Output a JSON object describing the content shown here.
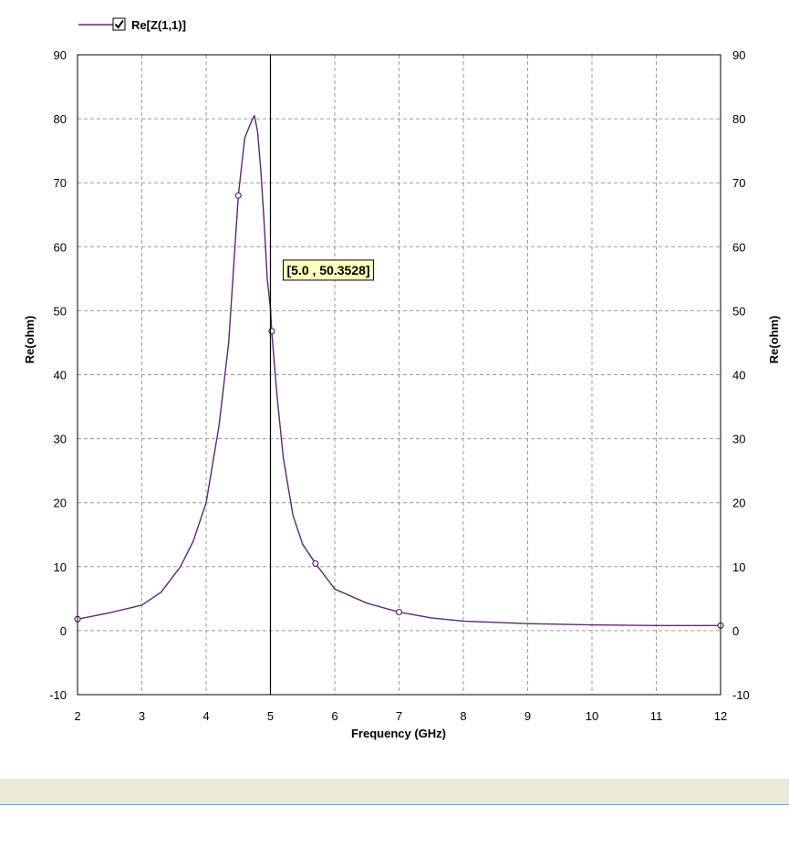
{
  "chart_data": {
    "type": "line",
    "legend": {
      "label": "Re[Z(1,1)]",
      "checked": true,
      "placement": "top-left"
    },
    "xlabel": "Frequency (GHz)",
    "ylabel": "Re(ohm)",
    "ylabel_right": "Re(ohm)",
    "xlim": [
      2,
      12
    ],
    "ylim": [
      -10,
      90
    ],
    "xticks": [
      2,
      3,
      4,
      5,
      6,
      7,
      8,
      9,
      10,
      11,
      12
    ],
    "yticks": [
      -10,
      0,
      10,
      20,
      30,
      40,
      50,
      60,
      70,
      80,
      90
    ],
    "grid": true,
    "series": [
      {
        "name": "Re[Z(1,1)]",
        "color": "#5c2a6e",
        "x": [
          2.0,
          2.5,
          3.0,
          3.3,
          3.6,
          3.8,
          4.0,
          4.2,
          4.35,
          4.5,
          4.6,
          4.7,
          4.75,
          4.8,
          4.85,
          4.9,
          4.95,
          5.0,
          5.02,
          5.1,
          5.2,
          5.35,
          5.5,
          5.7,
          6.0,
          6.5,
          7.0,
          7.5,
          8.0,
          9.0,
          10.0,
          11.0,
          12.0
        ],
        "y": [
          1.8,
          2.8,
          4.0,
          6.0,
          10.0,
          14.0,
          20.0,
          32.0,
          45.0,
          68.0,
          77.0,
          79.5,
          80.5,
          78.0,
          72.0,
          64.0,
          55.0,
          50.35,
          46.8,
          37.0,
          27.0,
          18.0,
          13.5,
          10.5,
          6.5,
          4.3,
          2.9,
          2.0,
          1.5,
          1.1,
          0.9,
          0.8,
          0.8
        ]
      }
    ],
    "markers": [
      {
        "x": 2.0,
        "y": 1.8
      },
      {
        "x": 4.5,
        "y": 68.0
      },
      {
        "x": 5.02,
        "y": 46.8
      },
      {
        "x": 5.7,
        "y": 10.5
      },
      {
        "x": 7.0,
        "y": 2.9
      },
      {
        "x": 12.0,
        "y": 0.8
      }
    ],
    "cursor": {
      "x": 5.0,
      "y": 50.3528,
      "label": "[5.0 , 50.3528]"
    }
  },
  "colors": {
    "series": "#5c2a6e",
    "grid": "#9a9a9a",
    "tooltip_bg": "#ffffc0",
    "cursor": "#000000"
  }
}
